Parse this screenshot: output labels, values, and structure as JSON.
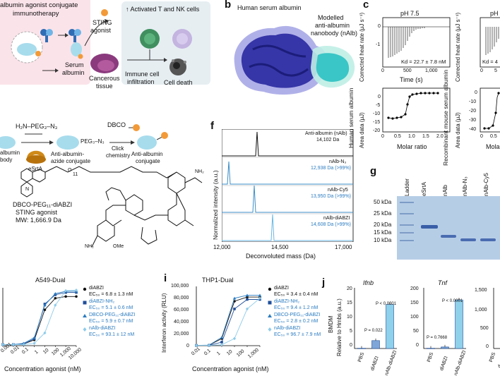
{
  "panels": {
    "b": "b",
    "c": "c",
    "f": "f",
    "g": "g",
    "i": "i",
    "j": "j"
  },
  "panel_a": {
    "title_line1": "albumin agonist conjugate",
    "title_line2": "immunotherapy",
    "serum_albumin": "Serum",
    "serum_albumin2": "albumin",
    "sting": "STING",
    "agonist": "agonist",
    "cancerous": "Cancerous",
    "tissue": "tissue",
    "activated": "Activated T and NK cells",
    "immune1": "Immune cell",
    "immune2": "infiltration",
    "cell_death": "Cell death"
  },
  "panel_b": {
    "title": "Human serum albumin",
    "modelled1": "Modelled",
    "modelled2": "anti-albumin",
    "modelled3": "nanobody (nAlb)"
  },
  "panel_c": {
    "ph": "pH 7.5",
    "ph_right": "pH",
    "ylabel_top": "Corrected heat rate (μJ s⁻¹)",
    "xlabel_top": "Time (s)",
    "kd": "Kd = 22.7 ± 7.8 nM",
    "kd_right": "Kd = 4",
    "ylabel_bottom": "Area data (μJ)",
    "xlabel_bottom": "Molar ratio",
    "xlabel_bottom_right": "Molar",
    "side_left": "Human serum albumin",
    "side_right": "Recombinant mouse serum albumin",
    "top_x_ticks": [
      "0",
      "500",
      "1,000"
    ],
    "top_x_ticks_right": [
      "0",
      "5"
    ],
    "top_y_ticks": [
      "0",
      "-1"
    ],
    "bottom_y_ticks": [
      "0",
      "-5",
      "-10",
      "-15",
      "-20"
    ],
    "bottom_x_ticks": [
      "0",
      "0.5",
      "1.0",
      "1.5",
      "2.0"
    ],
    "bottom_x_ticks_right": [
      "0",
      "0.5"
    ],
    "bottom_y_ticks_right": [
      "0",
      "-10",
      "-20",
      "-30",
      "-40"
    ]
  },
  "panel_e": {
    "peg": "H₂N–PEG₃–N₃",
    "dbco": "DBCO",
    "albumin": "albumin",
    "body": "body",
    "esrta": "eSrtA",
    "click1": "Click",
    "click2": "chemistry",
    "azide1": "Anti-albumin-",
    "azide2": "azide conjugate",
    "conj1": "Anti-albumin",
    "conj2": "conjugate",
    "peg_label": "PEG₃–N₃",
    "compound1": "DBCO-PEG₁₁-diABZI",
    "compound2": "STING agonist",
    "compound3": "MW: 1,666.9 Da",
    "subscript11": "11",
    "nh2": "NH₂",
    "ome": "OMe",
    "o": "O",
    "n": "N"
  },
  "panel_f": {
    "ylabel": "Normalized intensity (a.u.)",
    "xlabel": "Deconvoluted mass (Da)",
    "x_ticks": [
      "12,000",
      "14,500",
      "17,000"
    ],
    "traces": [
      {
        "name": "Anti-albumin (nAlb)",
        "mass": "14,102 Da"
      },
      {
        "name": "nAlb-N₃",
        "mass": "12,938 Da (>99%)"
      },
      {
        "name": "nAlb-Cy5",
        "mass": "13,950 Da (>99%)"
      },
      {
        "name": "nAlb-diABZI",
        "mass": "14,608 Da (>99%)"
      }
    ]
  },
  "panel_g": {
    "lanes": [
      "Ladder",
      "eSrtA",
      "nAlb",
      "nAlb-N₃",
      "nAlb-Cy5"
    ],
    "markers": [
      "50 kDa",
      "25 kDa",
      "20 kDa",
      "15 kDa",
      "10 kDa"
    ]
  },
  "panel_h": {
    "title": "A549-Dual",
    "xlabel": "Concentration agonist (nM)",
    "x_ticks": [
      "0.001",
      "0.01",
      "0.1",
      "1",
      "10",
      "100",
      "1,000",
      "10,000"
    ],
    "legend": [
      {
        "name": "diABZI",
        "ec": "EC₅₀ = 6.8 ± 1.3 nM"
      },
      {
        "name": "diABZI-NH₂",
        "ec": "EC₅₀ = 5.1 ± 0.6 nM"
      },
      {
        "name": "DBCO-PEG₁₁-diABZI",
        "ec": "EC₅₀ = 5.9 ± 0.7 nM"
      },
      {
        "name": "nAlb-diABZI",
        "ec": "EC₅₀ = 93.1 ± 12 nM"
      }
    ]
  },
  "panel_i": {
    "title": "THP1-Dual",
    "ylabel": "Interferon activity (RLU)",
    "xlabel": "Concentration agonist (nM)",
    "y_ticks": [
      "100,000",
      "80,000",
      "60,000",
      "40,000",
      "20,000",
      "0"
    ],
    "x_ticks": [
      "0.01",
      "0.1",
      "1",
      "10",
      "100",
      "1,000"
    ],
    "legend": [
      {
        "name": "diABZI",
        "ec": "EC₅₀ = 3.4 ± 0.4 nM"
      },
      {
        "name": "diABZI-NH₂",
        "ec": "EC₅₀ = 9.4 ± 1.2 nM"
      },
      {
        "name": "DBCO-PEG₁₁-diABZI",
        "ec": "EC₅₀ = 2.8 ± 0.2 nM"
      },
      {
        "name": "nAlb-diABZI",
        "ec": "EC₅₀ = 96.7 ± 7.9 nM"
      }
    ]
  },
  "panel_j": {
    "titles": [
      "Ifnb",
      "Tnf"
    ],
    "bmdm": "BMDM",
    "ylabel": "Relative to Hmbs (a.u.)",
    "ifnb_y_ticks": [
      "20",
      "15",
      "10",
      "5",
      "0"
    ],
    "tnf_y_ticks": [
      "200",
      "150",
      "100",
      "50",
      "0"
    ],
    "third_y_ticks": [
      "1,500",
      "1,000",
      "500",
      "0"
    ],
    "categories": [
      "PBS",
      "diABZI",
      "nAlb-diABZI"
    ],
    "third_categories": [
      "PBS",
      "d"
    ],
    "ifnb_p": [
      "P = 0.022",
      "P < 0.0001"
    ],
    "tnf_p": [
      "P = 0.7668",
      "P < 0.0001"
    ]
  },
  "chart_data": [
    {
      "type": "line",
      "title": "A549-Dual",
      "xlabel": "Concentration agonist (nM)",
      "ylabel": "",
      "x_scale": "log",
      "x": [
        0.001,
        0.01,
        0.1,
        1,
        10,
        100,
        1000,
        10000
      ],
      "series": [
        {
          "name": "diABZI",
          "values": [
            2,
            2,
            3,
            10,
            62,
            82,
            85,
            85
          ]
        },
        {
          "name": "diABZI-NH₂",
          "values": [
            2,
            2,
            3,
            12,
            72,
            88,
            92,
            92
          ]
        },
        {
          "name": "DBCO-PEG₁₁-diABZI",
          "values": [
            2,
            2,
            4,
            14,
            70,
            90,
            94,
            94
          ]
        },
        {
          "name": "nAlb-diABZI",
          "values": [
            2,
            2,
            2,
            4,
            22,
            70,
            95,
            96
          ]
        }
      ],
      "ylim": [
        0,
        100
      ]
    },
    {
      "type": "line",
      "title": "THP1-Dual",
      "xlabel": "Concentration agonist (nM)",
      "ylabel": "Interferon activity (RLU)",
      "x_scale": "log",
      "x": [
        0.01,
        0.1,
        1,
        10,
        100,
        1000
      ],
      "series": [
        {
          "name": "diABZI",
          "values": [
            500,
            800,
            12000,
            75000,
            82000,
            82000
          ]
        },
        {
          "name": "diABZI-NH₂",
          "values": [
            500,
            600,
            6000,
            62000,
            78000,
            78000
          ]
        },
        {
          "name": "DBCO-PEG₁₁-diABZI",
          "values": [
            500,
            900,
            14000,
            80000,
            85000,
            85000
          ]
        },
        {
          "name": "nAlb-diABZI",
          "values": [
            500,
            500,
            1500,
            12000,
            62000,
            80000
          ]
        }
      ],
      "ylim": [
        0,
        100000
      ]
    },
    {
      "type": "bar",
      "title": "Ifnb",
      "ylabel": "Relative to Hmbs (a.u.)",
      "categories": [
        "PBS",
        "diABZI",
        "nAlb-diABZI"
      ],
      "values": [
        0.1,
        2.6,
        14.5
      ],
      "ylim": [
        0,
        20
      ]
    },
    {
      "type": "bar",
      "title": "Tnf",
      "ylabel": "Relative to Hmbs (a.u.)",
      "categories": [
        "PBS",
        "diABZI",
        "nAlb-diABZI"
      ],
      "values": [
        1,
        5,
        160
      ],
      "ylim": [
        0,
        200
      ]
    }
  ]
}
